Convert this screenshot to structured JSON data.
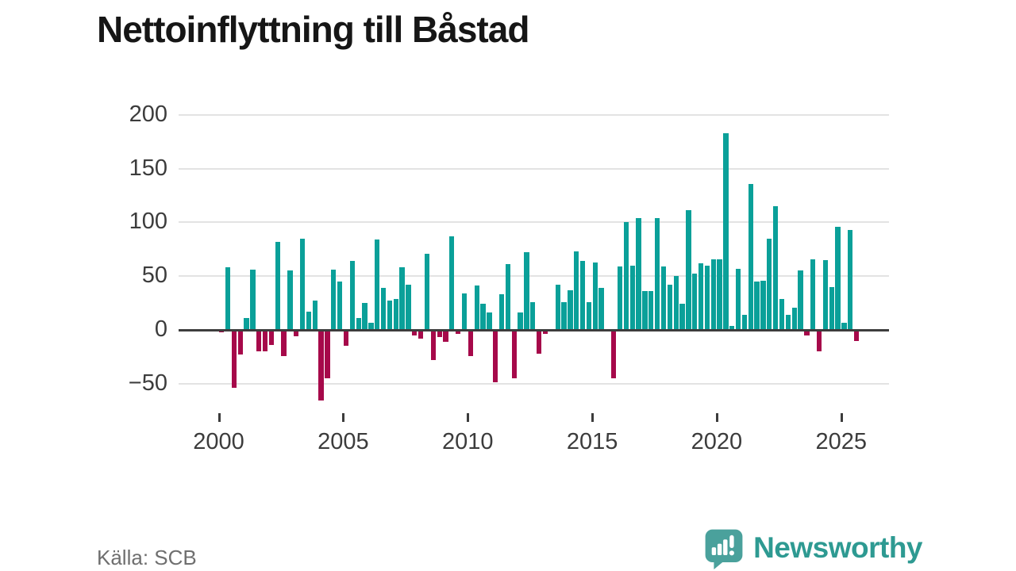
{
  "header": {
    "title": "Nettoinflyttning till Båstad"
  },
  "footer": {
    "source": "Källa: SCB",
    "brand": "Newsworthy"
  },
  "icons": {
    "logo": "newsworthy-speech-bubble-chart-icon"
  },
  "colors": {
    "positive": "#0aa099",
    "negative": "#a6094a",
    "zero_axis": "#3d3d3d",
    "gridline": "#e3e3e3",
    "axis_text": "#3c3c3c",
    "title_text": "#161616",
    "source_text": "#6f6f6f",
    "brand_teal": "#2e9a92",
    "logo_icon_teal": "#4aa19c"
  },
  "chart_data": {
    "type": "bar",
    "title": "Nettoinflyttning till Båstad",
    "frequency": "quarterly",
    "start_period": "2000 Q1",
    "end_period": "2025 Q3",
    "x_tick_labels": [
      "2000",
      "2005",
      "2010",
      "2015",
      "2020",
      "2025"
    ],
    "y_tick_labels": [
      "200",
      "150",
      "100",
      "50",
      "0",
      "−50"
    ],
    "y_ticks": [
      200,
      150,
      100,
      50,
      0,
      -50
    ],
    "ylim": [
      -70,
      210
    ],
    "grid": true,
    "legend": false,
    "series": [
      {
        "name": "Nettoinflyttning",
        "values": [
          -2,
          58,
          -54,
          -23,
          11,
          56,
          -20,
          -20,
          -14,
          82,
          -24,
          55,
          -6,
          85,
          17,
          27,
          -66,
          -45,
          56,
          45,
          -15,
          64,
          11,
          25,
          7,
          84,
          39,
          27,
          29,
          58,
          42,
          -5,
          -8,
          71,
          -28,
          -7,
          -11,
          87,
          -4,
          34,
          -24,
          41,
          24,
          16,
          -49,
          33,
          61,
          -45,
          16,
          72,
          26,
          -22,
          -4,
          0,
          42,
          26,
          37,
          73,
          64,
          26,
          63,
          39,
          0,
          -45,
          59,
          100,
          60,
          104,
          36,
          36,
          104,
          59,
          42,
          50,
          24,
          111,
          52,
          62,
          60,
          66,
          66,
          183,
          4,
          57,
          14,
          136,
          45,
          46,
          85,
          115,
          29,
          14,
          21,
          55,
          -5,
          66,
          -20,
          65,
          40,
          96,
          7,
          93,
          -10
        ]
      }
    ]
  }
}
